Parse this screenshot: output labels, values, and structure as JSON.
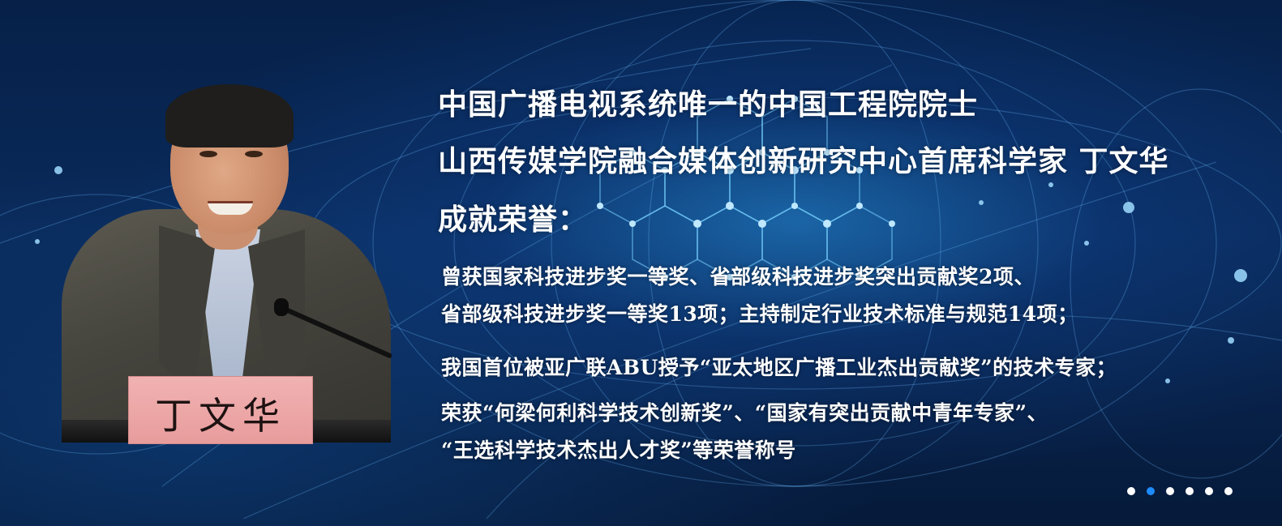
{
  "slide": {
    "headline_1": "中国广播电视系统唯一的中国工程院院士",
    "headline_2": "山西传媒学院融合媒体创新研究中心首席科学家    丁文华",
    "section_title": "成就荣誉：",
    "paragraphs": [
      "曾获国家科技进步奖一等奖、省部级科技进步奖突出贡献奖2项、",
      "省部级科技进步奖一等奖13项；主持制定行业技术标准与规范14项；",
      "我国首位被亚广联ABU授予“亚太地区广播工业杰出贡献奖”的技术专家；",
      "荣获“何梁何利科学技术创新奖”、“国家有突出贡献中青年专家”、",
      "“王选科学技术杰出人才奖”等荣誉称号"
    ],
    "nameplate_text": "丁文华"
  },
  "pagination": {
    "count": 6,
    "active_index": 1,
    "active_color": "#1e8cff",
    "inactive_color": "#ffffff"
  },
  "theme": {
    "background": "#061a3a",
    "glow": "#2a96e6",
    "text": "#ffffff"
  },
  "icons": {
    "portrait": "portrait-photo",
    "background": "network-globe-background"
  }
}
